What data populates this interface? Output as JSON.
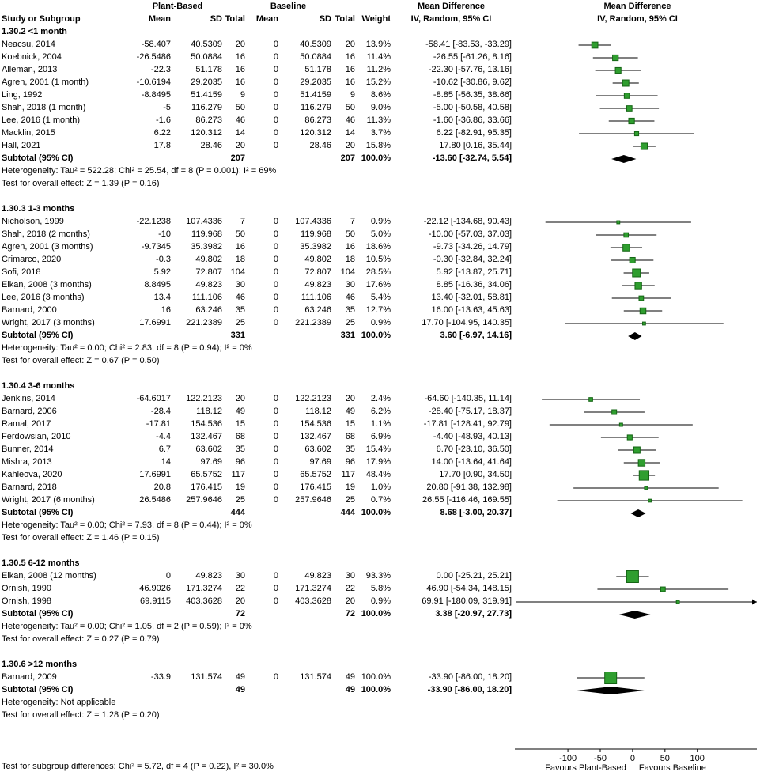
{
  "header": {
    "study": "Study or Subgroup",
    "group1": "Plant-Based",
    "group2": "Baseline",
    "mean": "Mean",
    "sd": "SD",
    "total": "Total",
    "weight": "Weight",
    "md": "Mean Difference",
    "method": "IV, Random, 95% CI"
  },
  "footnote": "Test for subgroup differences: Chi² = 5.72, df = 4 (P = 0.22), I² = 30.0%",
  "chart_data": {
    "type": "scatter",
    "variant": "forest-plot",
    "title": "Mean Difference",
    "subtitle": "IV, Random, 95% CI",
    "x_ticks": [
      -100,
      -50,
      0,
      50,
      100
    ],
    "xlim": [
      -182,
      192
    ],
    "favours_left": "Favours Plant-Based",
    "favours_right": "Favours Baseline",
    "colors": {
      "square": "#2f9e2f",
      "square_border": "#156515",
      "diamond": "#000000",
      "line": "#000000"
    },
    "sections": [
      {
        "label": "1.30.2 <1 month",
        "studies": [
          {
            "name": "Neacsu, 2014",
            "m1": "-58.407",
            "sd1": "40.5309",
            "n1": "20",
            "m2": "0",
            "sd2": "40.5309",
            "n2": "20",
            "w": "13.9%",
            "ci": "-58.41 [-83.53, -33.29]",
            "est": -58.41,
            "lo": -83.53,
            "hi": -33.29
          },
          {
            "name": "Koebnick, 2004",
            "m1": "-26.5486",
            "sd1": "50.0884",
            "n1": "16",
            "m2": "0",
            "sd2": "50.0884",
            "n2": "16",
            "w": "11.4%",
            "ci": "-26.55 [-61.26, 8.16]",
            "est": -26.55,
            "lo": -61.26,
            "hi": 8.16
          },
          {
            "name": "Alleman, 2013",
            "m1": "-22.3",
            "sd1": "51.178",
            "n1": "16",
            "m2": "0",
            "sd2": "51.178",
            "n2": "16",
            "w": "11.2%",
            "ci": "-22.30 [-57.76, 13.16]",
            "est": -22.3,
            "lo": -57.76,
            "hi": 13.16
          },
          {
            "name": "Agren, 2001 (1 month)",
            "m1": "-10.6194",
            "sd1": "29.2035",
            "n1": "16",
            "m2": "0",
            "sd2": "29.2035",
            "n2": "16",
            "w": "15.2%",
            "ci": "-10.62 [-30.86, 9.62]",
            "est": -10.62,
            "lo": -30.86,
            "hi": 9.62
          },
          {
            "name": "Ling, 1992",
            "m1": "-8.8495",
            "sd1": "51.4159",
            "n1": "9",
            "m2": "0",
            "sd2": "51.4159",
            "n2": "9",
            "w": "8.6%",
            "ci": "-8.85 [-56.35, 38.66]",
            "est": -8.85,
            "lo": -56.35,
            "hi": 38.66
          },
          {
            "name": "Shah, 2018 (1 month)",
            "m1": "-5",
            "sd1": "116.279",
            "n1": "50",
            "m2": "0",
            "sd2": "116.279",
            "n2": "50",
            "w": "9.0%",
            "ci": "-5.00 [-50.58, 40.58]",
            "est": -5.0,
            "lo": -50.58,
            "hi": 40.58
          },
          {
            "name": "Lee, 2016 (1 month)",
            "m1": "-1.6",
            "sd1": "86.273",
            "n1": "46",
            "m2": "0",
            "sd2": "86.273",
            "n2": "46",
            "w": "11.3%",
            "ci": "-1.60 [-36.86, 33.66]",
            "est": -1.6,
            "lo": -36.86,
            "hi": 33.66
          },
          {
            "name": "Macklin, 2015",
            "m1": "6.22",
            "sd1": "120.312",
            "n1": "14",
            "m2": "0",
            "sd2": "120.312",
            "n2": "14",
            "w": "3.7%",
            "ci": "6.22 [-82.91, 95.35]",
            "est": 6.22,
            "lo": -82.91,
            "hi": 95.35
          },
          {
            "name": "Hall, 2021",
            "m1": "17.8",
            "sd1": "28.46",
            "n1": "20",
            "m2": "0",
            "sd2": "28.46",
            "n2": "20",
            "w": "15.8%",
            "ci": "17.80 [0.16, 35.44]",
            "est": 17.8,
            "lo": 0.16,
            "hi": 35.44
          }
        ],
        "subtotal": {
          "label": "Subtotal (95% CI)",
          "n1": "207",
          "n2": "207",
          "w": "100.0%",
          "ci": "-13.60 [-32.74, 5.54]",
          "est": -13.6,
          "lo": -32.74,
          "hi": 5.54
        },
        "heterogeneity": "Heterogeneity: Tau² = 522.28; Chi² = 25.54, df = 8 (P = 0.001); I² = 69%",
        "test": "Test for overall effect: Z = 1.39 (P = 0.16)"
      },
      {
        "label": "1.30.3 1-3 months",
        "studies": [
          {
            "name": "Nicholson, 1999",
            "m1": "-22.1238",
            "sd1": "107.4336",
            "n1": "7",
            "m2": "0",
            "sd2": "107.4336",
            "n2": "7",
            "w": "0.9%",
            "ci": "-22.12 [-134.68, 90.43]",
            "est": -22.12,
            "lo": -134.68,
            "hi": 90.43
          },
          {
            "name": "Shah, 2018 (2 months)",
            "m1": "-10",
            "sd1": "119.968",
            "n1": "50",
            "m2": "0",
            "sd2": "119.968",
            "n2": "50",
            "w": "5.0%",
            "ci": "-10.00 [-57.03, 37.03]",
            "est": -10.0,
            "lo": -57.03,
            "hi": 37.03
          },
          {
            "name": "Agren, 2001 (3 months)",
            "m1": "-9.7345",
            "sd1": "35.3982",
            "n1": "16",
            "m2": "0",
            "sd2": "35.3982",
            "n2": "16",
            "w": "18.6%",
            "ci": "-9.73 [-34.26, 14.79]",
            "est": -9.73,
            "lo": -34.26,
            "hi": 14.79
          },
          {
            "name": "Crimarco, 2020",
            "m1": "-0.3",
            "sd1": "49.802",
            "n1": "18",
            "m2": "0",
            "sd2": "49.802",
            "n2": "18",
            "w": "10.5%",
            "ci": "-0.30 [-32.84, 32.24]",
            "est": -0.3,
            "lo": -32.84,
            "hi": 32.24
          },
          {
            "name": "Sofi, 2018",
            "m1": "5.92",
            "sd1": "72.807",
            "n1": "104",
            "m2": "0",
            "sd2": "72.807",
            "n2": "104",
            "w": "28.5%",
            "ci": "5.92 [-13.87, 25.71]",
            "est": 5.92,
            "lo": -13.87,
            "hi": 25.71
          },
          {
            "name": "Elkan, 2008 (3 months)",
            "m1": "8.8495",
            "sd1": "49.823",
            "n1": "30",
            "m2": "0",
            "sd2": "49.823",
            "n2": "30",
            "w": "17.6%",
            "ci": "8.85 [-16.36, 34.06]",
            "est": 8.85,
            "lo": -16.36,
            "hi": 34.06
          },
          {
            "name": "Lee, 2016 (3 months)",
            "m1": "13.4",
            "sd1": "111.106",
            "n1": "46",
            "m2": "0",
            "sd2": "111.106",
            "n2": "46",
            "w": "5.4%",
            "ci": "13.40 [-32.01, 58.81]",
            "est": 13.4,
            "lo": -32.01,
            "hi": 58.81
          },
          {
            "name": "Barnard, 2000",
            "m1": "16",
            "sd1": "63.246",
            "n1": "35",
            "m2": "0",
            "sd2": "63.246",
            "n2": "35",
            "w": "12.7%",
            "ci": "16.00 [-13.63, 45.63]",
            "est": 16.0,
            "lo": -13.63,
            "hi": 45.63
          },
          {
            "name": "Wright, 2017 (3 months)",
            "m1": "17.6991",
            "sd1": "221.2389",
            "n1": "25",
            "m2": "0",
            "sd2": "221.2389",
            "n2": "25",
            "w": "0.9%",
            "ci": "17.70 [-104.95, 140.35]",
            "est": 17.7,
            "lo": -104.95,
            "hi": 140.35
          }
        ],
        "subtotal": {
          "label": "Subtotal (95% CI)",
          "n1": "331",
          "n2": "331",
          "w": "100.0%",
          "ci": "3.60 [-6.97, 14.16]",
          "est": 3.6,
          "lo": -6.97,
          "hi": 14.16
        },
        "heterogeneity": "Heterogeneity: Tau² = 0.00; Chi² = 2.83, df = 8 (P = 0.94); I² = 0%",
        "test": "Test for overall effect: Z = 0.67 (P = 0.50)"
      },
      {
        "label": "1.30.4 3-6 months",
        "studies": [
          {
            "name": "Jenkins, 2014",
            "m1": "-64.6017",
            "sd1": "122.2123",
            "n1": "20",
            "m2": "0",
            "sd2": "122.2123",
            "n2": "20",
            "w": "2.4%",
            "ci": "-64.60 [-140.35, 11.14]",
            "est": -64.6,
            "lo": -140.35,
            "hi": 11.14
          },
          {
            "name": "Barnard, 2006",
            "m1": "-28.4",
            "sd1": "118.12",
            "n1": "49",
            "m2": "0",
            "sd2": "118.12",
            "n2": "49",
            "w": "6.2%",
            "ci": "-28.40 [-75.17, 18.37]",
            "est": -28.4,
            "lo": -75.17,
            "hi": 18.37
          },
          {
            "name": "Ramal, 2017",
            "m1": "-17.81",
            "sd1": "154.536",
            "n1": "15",
            "m2": "0",
            "sd2": "154.536",
            "n2": "15",
            "w": "1.1%",
            "ci": "-17.81 [-128.41, 92.79]",
            "est": -17.81,
            "lo": -128.41,
            "hi": 92.79
          },
          {
            "name": "Ferdowsian, 2010",
            "m1": "-4.4",
            "sd1": "132.467",
            "n1": "68",
            "m2": "0",
            "sd2": "132.467",
            "n2": "68",
            "w": "6.9%",
            "ci": "-4.40 [-48.93, 40.13]",
            "est": -4.4,
            "lo": -48.93,
            "hi": 40.13
          },
          {
            "name": "Bunner, 2014",
            "m1": "6.7",
            "sd1": "63.602",
            "n1": "35",
            "m2": "0",
            "sd2": "63.602",
            "n2": "35",
            "w": "15.4%",
            "ci": "6.70 [-23.10, 36.50]",
            "est": 6.7,
            "lo": -23.1,
            "hi": 36.5
          },
          {
            "name": "Mishra, 2013",
            "m1": "14",
            "sd1": "97.69",
            "n1": "96",
            "m2": "0",
            "sd2": "97.69",
            "n2": "96",
            "w": "17.9%",
            "ci": "14.00 [-13.64, 41.64]",
            "est": 14.0,
            "lo": -13.64,
            "hi": 41.64
          },
          {
            "name": "Kahleova, 2020",
            "m1": "17.6991",
            "sd1": "65.5752",
            "n1": "117",
            "m2": "0",
            "sd2": "65.5752",
            "n2": "117",
            "w": "48.4%",
            "ci": "17.70 [0.90, 34.50]",
            "est": 17.7,
            "lo": 0.9,
            "hi": 34.5
          },
          {
            "name": "Barnard, 2018",
            "m1": "20.8",
            "sd1": "176.415",
            "n1": "19",
            "m2": "0",
            "sd2": "176.415",
            "n2": "19",
            "w": "1.0%",
            "ci": "20.80 [-91.38, 132.98]",
            "est": 20.8,
            "lo": -91.38,
            "hi": 132.98
          },
          {
            "name": "Wright, 2017 (6 months)",
            "m1": "26.5486",
            "sd1": "257.9646",
            "n1": "25",
            "m2": "0",
            "sd2": "257.9646",
            "n2": "25",
            "w": "0.7%",
            "ci": "26.55 [-116.46, 169.55]",
            "est": 26.55,
            "lo": -116.46,
            "hi": 169.55
          }
        ],
        "subtotal": {
          "label": "Subtotal (95% CI)",
          "n1": "444",
          "n2": "444",
          "w": "100.0%",
          "ci": "8.68 [-3.00, 20.37]",
          "est": 8.68,
          "lo": -3.0,
          "hi": 20.37
        },
        "heterogeneity": "Heterogeneity: Tau² = 0.00; Chi² = 7.93, df = 8 (P = 0.44); I² = 0%",
        "test": "Test for overall effect: Z = 1.46 (P = 0.15)"
      },
      {
        "label": "1.30.5 6-12 months",
        "studies": [
          {
            "name": "Elkan, 2008 (12 months)",
            "m1": "0",
            "sd1": "49.823",
            "n1": "30",
            "m2": "0",
            "sd2": "49.823",
            "n2": "30",
            "w": "93.3%",
            "ci": "0.00 [-25.21, 25.21]",
            "est": 0.0,
            "lo": -25.21,
            "hi": 25.21
          },
          {
            "name": "Ornish, 1990",
            "m1": "46.9026",
            "sd1": "171.3274",
            "n1": "22",
            "m2": "0",
            "sd2": "171.3274",
            "n2": "22",
            "w": "5.8%",
            "ci": "46.90 [-54.34, 148.15]",
            "est": 46.9,
            "lo": -54.34,
            "hi": 148.15
          },
          {
            "name": "Ornish, 1998",
            "m1": "69.9115",
            "sd1": "403.3628",
            "n1": "20",
            "m2": "0",
            "sd2": "403.3628",
            "n2": "20",
            "w": "0.9%",
            "ci": "69.91 [-180.09, 319.91]",
            "est": 69.91,
            "lo": -180.09,
            "hi": 319.91
          }
        ],
        "subtotal": {
          "label": "Subtotal (95% CI)",
          "n1": "72",
          "n2": "72",
          "w": "100.0%",
          "ci": "3.38 [-20.97, 27.73]",
          "est": 3.38,
          "lo": -20.97,
          "hi": 27.73
        },
        "heterogeneity": "Heterogeneity: Tau² = 0.00; Chi² = 1.05, df = 2 (P = 0.59); I² = 0%",
        "test": "Test for overall effect: Z = 0.27 (P = 0.79)"
      },
      {
        "label": "1.30.6 >12 months",
        "studies": [
          {
            "name": "Barnard, 2009",
            "m1": "-33.9",
            "sd1": "131.574",
            "n1": "49",
            "m2": "0",
            "sd2": "131.574",
            "n2": "49",
            "w": "100.0%",
            "ci": "-33.90 [-86.00, 18.20]",
            "est": -33.9,
            "lo": -86.0,
            "hi": 18.2
          }
        ],
        "subtotal": {
          "label": "Subtotal (95% CI)",
          "n1": "49",
          "n2": "49",
          "w": "100.0%",
          "ci": "-33.90 [-86.00, 18.20]",
          "est": -33.9,
          "lo": -86.0,
          "hi": 18.2
        },
        "heterogeneity": "Heterogeneity: Not applicable",
        "test": "Test for overall effect: Z = 1.28 (P = 0.20)"
      }
    ]
  }
}
